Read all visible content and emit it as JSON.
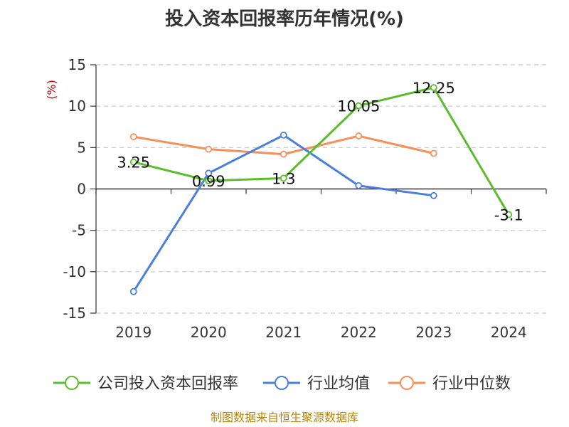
{
  "chart_data": {
    "type": "line",
    "title": "投入资本回报率历年情况(%)",
    "ylabel": "(%)",
    "categories": [
      "2019",
      "2020",
      "2021",
      "2022",
      "2023",
      "2024"
    ],
    "ylim": [
      -15,
      15
    ],
    "yticks": [
      15,
      10,
      5,
      0,
      -5,
      -10,
      -15
    ],
    "grid": true,
    "legend_position": "bottom",
    "series": [
      {
        "name": "公司投入资本回报率",
        "color": "#5bbd2b",
        "values": [
          3.25,
          0.99,
          1.3,
          10.05,
          12.25,
          -3.1
        ],
        "labels": [
          "3.25",
          "0.99",
          "1.3",
          "10.05",
          "12.25",
          "-3.1"
        ]
      },
      {
        "name": "行业均值",
        "color": "#4a7fdc",
        "values": [
          -12.4,
          1.9,
          6.5,
          0.4,
          -0.8,
          null
        ]
      },
      {
        "name": "行业中位数",
        "color": "#f5905a",
        "values": [
          6.3,
          4.8,
          4.2,
          6.4,
          4.3,
          null
        ]
      }
    ]
  },
  "source": "制图数据来自恒生聚源数据库"
}
